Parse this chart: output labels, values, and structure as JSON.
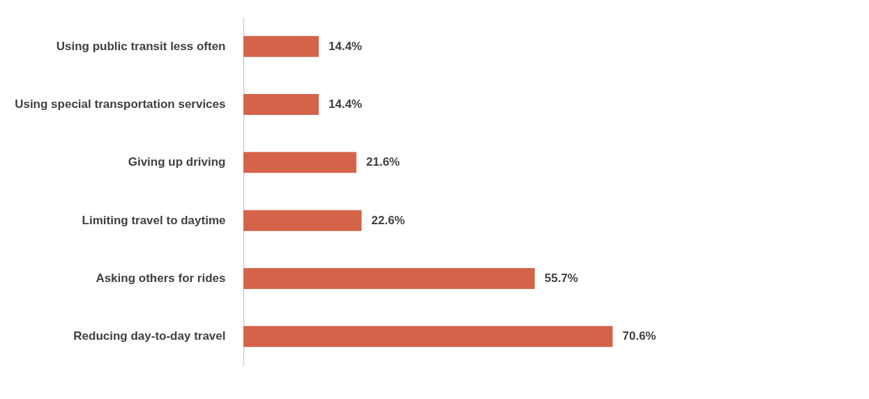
{
  "chart_data": {
    "type": "bar",
    "orientation": "horizontal",
    "categories": [
      "Using public transit less often",
      "Using special transportation services",
      "Giving up driving",
      "Limiting travel to daytime",
      "Asking others for rides",
      "Reducing day-to-day travel"
    ],
    "values": [
      14.4,
      14.4,
      21.6,
      22.6,
      55.7,
      70.6
    ],
    "value_labels": [
      "14.4%",
      "14.4%",
      "21.6%",
      "22.6%",
      "55.7%",
      "70.6%"
    ],
    "color": "#d4634a"
  }
}
